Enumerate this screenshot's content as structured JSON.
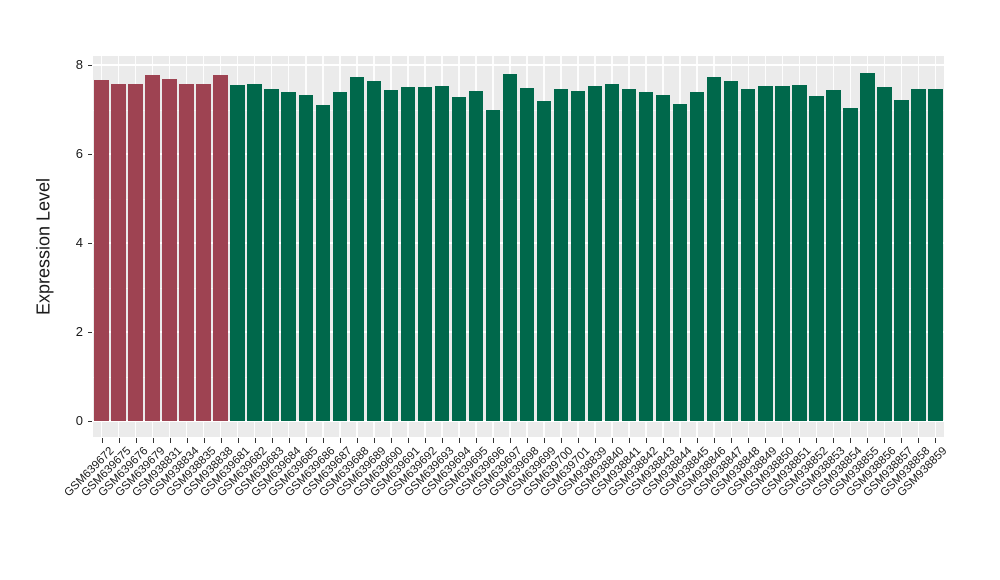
{
  "chart_data": {
    "type": "bar",
    "title": "",
    "xlabel": "",
    "ylabel": "Expression Level",
    "ylim": [
      0,
      8
    ],
    "yticks": [
      0,
      2,
      4,
      6,
      8
    ],
    "minor_gridlines": [
      1,
      3,
      5,
      7
    ],
    "grid": "on",
    "legend_position": "none",
    "panel_background": "#EBEBEB",
    "gridline_color": "#FFFFFF",
    "tick_color": "#333333",
    "text_color": "#1A1A1A",
    "group_colors": {
      "groupA": "#9E4352",
      "groupB": "#00684B"
    },
    "categories": [
      "GSM639672",
      "GSM639675",
      "GSM639676",
      "GSM639679",
      "GSM938831",
      "GSM938834",
      "GSM938835",
      "GSM938838",
      "GSM639681",
      "GSM639682",
      "GSM639683",
      "GSM639684",
      "GSM639685",
      "GSM639686",
      "GSM639687",
      "GSM639688",
      "GSM639689",
      "GSM639690",
      "GSM639691",
      "GSM639692",
      "GSM639693",
      "GSM639694",
      "GSM639695",
      "GSM639696",
      "GSM639697",
      "GSM639698",
      "GSM639699",
      "GSM639700",
      "GSM639701",
      "GSM938839",
      "GSM938840",
      "GSM938841",
      "GSM938842",
      "GSM938843",
      "GSM938844",
      "GSM938845",
      "GSM938846",
      "GSM938847",
      "GSM938848",
      "GSM938849",
      "GSM938850",
      "GSM938851",
      "GSM938852",
      "GSM938853",
      "GSM938854",
      "GSM938855",
      "GSM938856",
      "GSM938857",
      "GSM938858",
      "GSM938859"
    ],
    "values": [
      7.67,
      7.57,
      7.57,
      7.78,
      7.68,
      7.58,
      7.58,
      7.78,
      7.54,
      7.57,
      7.46,
      7.4,
      7.33,
      7.09,
      7.39,
      7.72,
      7.63,
      7.43,
      7.5,
      7.51,
      7.53,
      7.27,
      7.41,
      7.0,
      7.79,
      7.48,
      7.19,
      7.45,
      7.42,
      7.53,
      7.58,
      7.47,
      7.4,
      7.33,
      7.12,
      7.4,
      7.73,
      7.64,
      7.47,
      7.52,
      7.53,
      7.54,
      7.3,
      7.43,
      7.04,
      7.81,
      7.51,
      7.21,
      7.47,
      7.45
    ],
    "bar_groups": [
      "groupA",
      "groupA",
      "groupA",
      "groupA",
      "groupA",
      "groupA",
      "groupA",
      "groupA",
      "groupB",
      "groupB",
      "groupB",
      "groupB",
      "groupB",
      "groupB",
      "groupB",
      "groupB",
      "groupB",
      "groupB",
      "groupB",
      "groupB",
      "groupB",
      "groupB",
      "groupB",
      "groupB",
      "groupB",
      "groupB",
      "groupB",
      "groupB",
      "groupB",
      "groupB",
      "groupB",
      "groupB",
      "groupB",
      "groupB",
      "groupB",
      "groupB",
      "groupB",
      "groupB",
      "groupB",
      "groupB",
      "groupB",
      "groupB",
      "groupB",
      "groupB",
      "groupB",
      "groupB",
      "groupB",
      "groupB",
      "groupB",
      "groupB"
    ]
  }
}
